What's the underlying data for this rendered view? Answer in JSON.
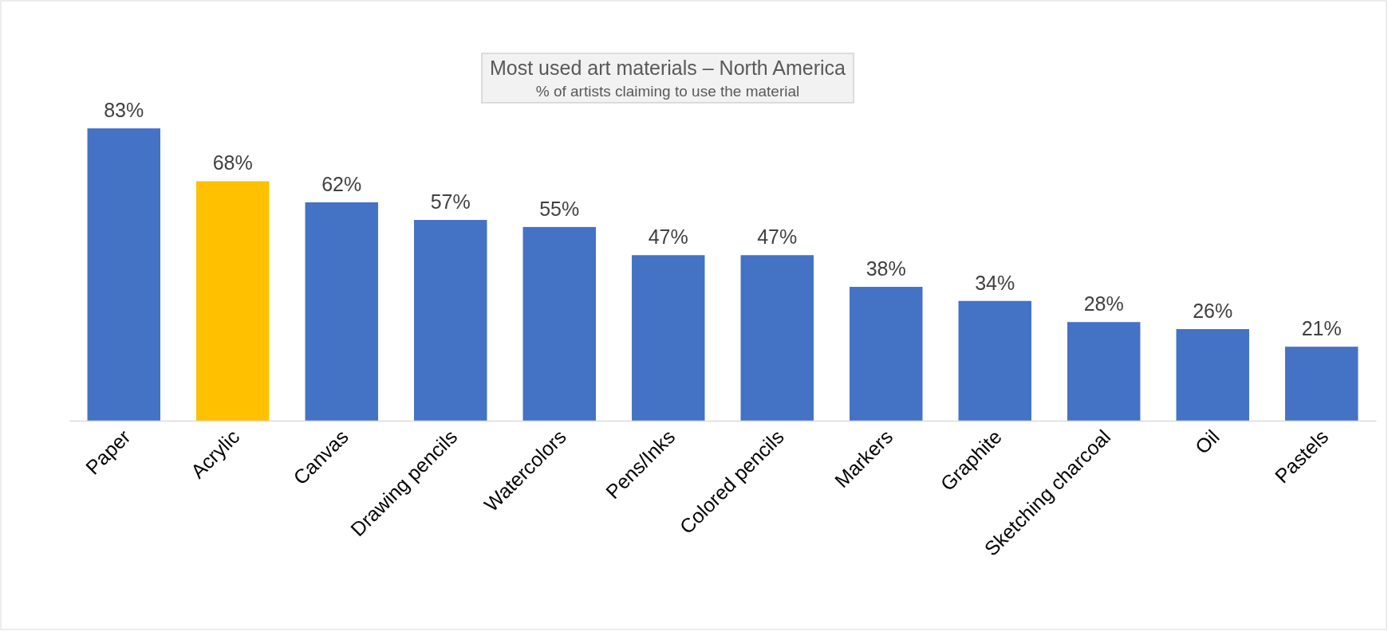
{
  "chart_data": {
    "type": "bar",
    "title": "Most used art materials – North America",
    "subtitle": "% of artists claiming to use the material",
    "categories": [
      "Paper",
      "Acrylic",
      "Canvas",
      "Drawing pencils",
      "Watercolors",
      "Pens/Inks",
      "Colored pencils",
      "Markers",
      "Graphite",
      "Sketching charcoal",
      "Oil",
      "Pastels"
    ],
    "values": [
      83,
      68,
      62,
      57,
      55,
      47,
      47,
      38,
      34,
      28,
      26,
      21
    ],
    "colors": [
      "#4472c4",
      "#ffc000",
      "#4472c4",
      "#4472c4",
      "#4472c4",
      "#4472c4",
      "#4472c4",
      "#4472c4",
      "#4472c4",
      "#4472c4",
      "#4472c4",
      "#4472c4"
    ],
    "value_labels": [
      "83%",
      "68%",
      "62%",
      "57%",
      "55%",
      "47%",
      "47%",
      "38%",
      "34%",
      "28%",
      "26%",
      "21%"
    ]
  }
}
